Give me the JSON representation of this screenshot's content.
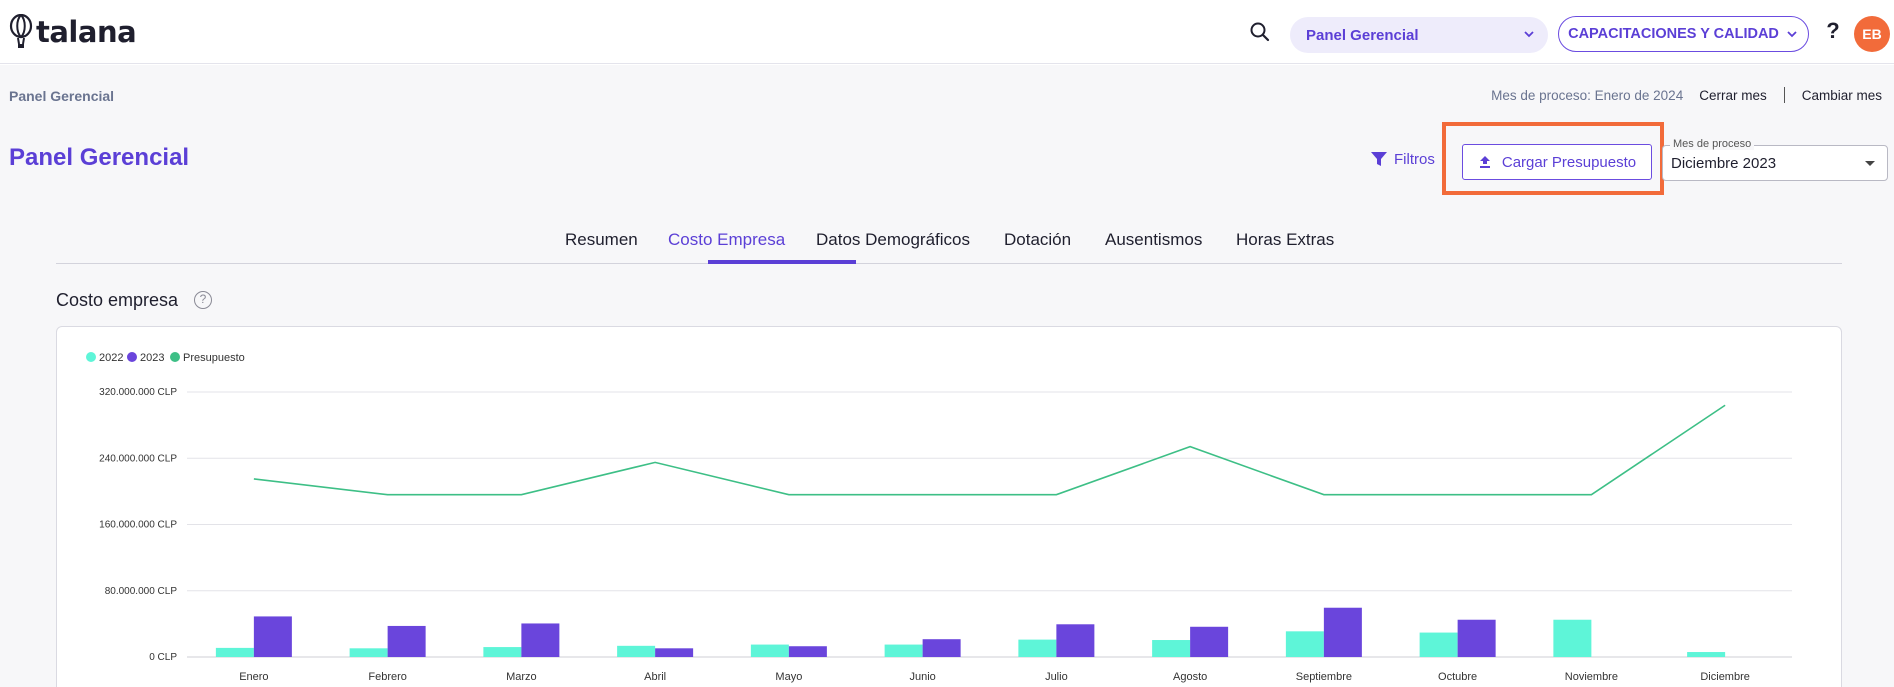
{
  "topbar": {
    "logo_text": "talana",
    "module_select": "Panel Gerencial",
    "company_button": "CAPACITACIONES Y CALIDAD",
    "help": "?",
    "avatar_initials": "EB"
  },
  "subheader": {
    "breadcrumb": "Panel Gerencial",
    "process_label": "Mes de proceso: Enero de 2024",
    "close_month": "Cerrar mes",
    "change_month": "Cambiar mes"
  },
  "page": {
    "title": "Panel Gerencial",
    "filters_label": "Filtros",
    "upload_label": "Cargar Presupuesto",
    "month_select_legend": "Mes de proceso",
    "month_select_value": "Diciembre 2023"
  },
  "tabs": [
    {
      "label": "Resumen",
      "active": false
    },
    {
      "label": "Costo Empresa",
      "active": true
    },
    {
      "label": "Datos Demográficos",
      "active": false
    },
    {
      "label": "Dotación",
      "active": false
    },
    {
      "label": "Ausentismos",
      "active": false
    },
    {
      "label": "Horas Extras",
      "active": false
    }
  ],
  "section": {
    "title": "Costo empresa",
    "help": "?"
  },
  "colors": {
    "accent": "#5b3fd6",
    "series_2022": "#5ef5d8",
    "series_2023": "#6a45dc",
    "budget": "#3dbf86",
    "highlight": "#f26b3a"
  },
  "chart_data": {
    "type": "bar",
    "categories": [
      "Enero",
      "Febrero",
      "Marzo",
      "Abril",
      "Mayo",
      "Junio",
      "Julio",
      "Agosto",
      "Septiembre",
      "Octubre",
      "Noviembre",
      "Diciembre"
    ],
    "series": [
      {
        "name": "2022",
        "type": "bar",
        "values": [
          11000000,
          10500000,
          12000000,
          13500000,
          15000000,
          15000000,
          21000000,
          20500000,
          31000000,
          29500000,
          45000000,
          6000000
        ]
      },
      {
        "name": "2023",
        "type": "bar",
        "values": [
          49000000,
          37500000,
          40500000,
          10500000,
          13000000,
          21500000,
          39500000,
          36500000,
          59500000,
          45000000,
          0,
          0
        ]
      },
      {
        "name": "Presupuesto",
        "type": "line",
        "values": [
          215000000,
          196000000,
          196000000,
          235000000,
          196000000,
          196000000,
          196000000,
          254000000,
          196000000,
          196000000,
          196000000,
          304000000
        ]
      }
    ],
    "legend": [
      "2022",
      "2023",
      "Presupuesto"
    ],
    "legend_position": "top-left",
    "ylim": [
      0,
      320000000
    ],
    "yticks": [
      "0 CLP",
      "80.000.000 CLP",
      "160.000.000 CLP",
      "240.000.000 CLP",
      "320.000.000 CLP"
    ],
    "ytick_values": [
      0,
      80000000,
      160000000,
      240000000,
      320000000
    ],
    "grid": true
  }
}
